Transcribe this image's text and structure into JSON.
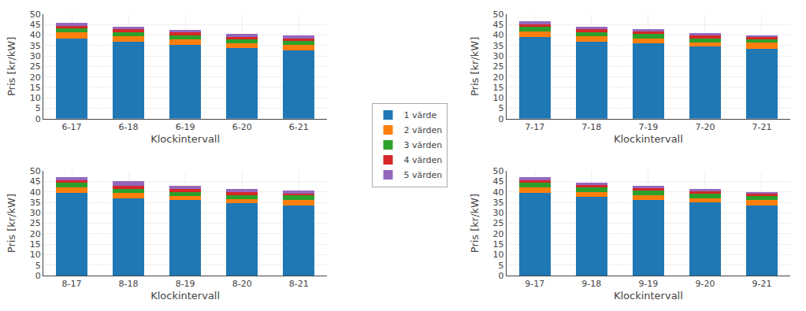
{
  "chart_data": [
    {
      "type": "bar",
      "stacked": true,
      "grid": true,
      "xlabel": "Klockintervall",
      "ylabel": "Pris [kr/kW]",
      "categories": [
        "6-17",
        "6-18",
        "6-19",
        "6-20",
        "6-21"
      ],
      "series": [
        {
          "name": "1 värde",
          "values": [
            38.5,
            37.0,
            35.5,
            34.0,
            32.5
          ]
        },
        {
          "name": "2 värden",
          "values": [
            2.8,
            2.5,
            2.5,
            2.0,
            2.8
          ]
        },
        {
          "name": "3 värden",
          "values": [
            2.0,
            2.0,
            2.0,
            2.0,
            2.0
          ]
        },
        {
          "name": "4 värden",
          "values": [
            1.2,
            1.2,
            1.2,
            1.2,
            1.2
          ]
        },
        {
          "name": "5 värden",
          "values": [
            1.5,
            1.3,
            1.3,
            1.3,
            1.5
          ]
        }
      ],
      "ylim": [
        0,
        50
      ],
      "yticks": [
        0,
        5,
        10,
        15,
        20,
        25,
        30,
        35,
        40,
        45,
        50
      ]
    },
    {
      "type": "bar",
      "stacked": true,
      "grid": true,
      "xlabel": "Klockintervall",
      "ylabel": "Pris [kr/kW]",
      "categories": [
        "7-17",
        "7-18",
        "7-19",
        "7-20",
        "7-21"
      ],
      "series": [
        {
          "name": "1 värde",
          "values": [
            39.0,
            37.0,
            36.0,
            34.5,
            33.5
          ]
        },
        {
          "name": "2 värden",
          "values": [
            2.8,
            2.5,
            2.5,
            2.0,
            2.8
          ]
        },
        {
          "name": "3 värden",
          "values": [
            2.0,
            2.0,
            2.0,
            2.0,
            2.0
          ]
        },
        {
          "name": "4 värden",
          "values": [
            1.2,
            1.2,
            1.2,
            1.2,
            0.7
          ]
        },
        {
          "name": "5 värden",
          "values": [
            1.5,
            1.3,
            1.3,
            1.3,
            1.0
          ]
        }
      ],
      "ylim": [
        0,
        50
      ],
      "yticks": [
        0,
        5,
        10,
        15,
        20,
        25,
        30,
        35,
        40,
        45,
        50
      ]
    },
    {
      "type": "bar",
      "stacked": true,
      "grid": true,
      "xlabel": "Klockintervall",
      "ylabel": "Pris [kr/kW]",
      "categories": [
        "8-17",
        "8-18",
        "8-19",
        "8-20",
        "8-21"
      ],
      "series": [
        {
          "name": "1 värde",
          "values": [
            39.5,
            37.0,
            36.0,
            34.5,
            33.5
          ]
        },
        {
          "name": "2 värden",
          "values": [
            2.8,
            2.5,
            2.0,
            2.0,
            2.8
          ]
        },
        {
          "name": "3 värden",
          "values": [
            2.0,
            2.0,
            2.0,
            2.0,
            2.0
          ]
        },
        {
          "name": "4 värden",
          "values": [
            1.2,
            1.5,
            1.5,
            1.5,
            1.0
          ]
        },
        {
          "name": "5 värden",
          "values": [
            1.5,
            2.0,
            1.5,
            1.5,
            1.2
          ]
        }
      ],
      "ylim": [
        0,
        50
      ],
      "yticks": [
        0,
        5,
        10,
        15,
        20,
        25,
        30,
        35,
        40,
        45,
        50
      ]
    },
    {
      "type": "bar",
      "stacked": true,
      "grid": true,
      "xlabel": "Klockintervall",
      "ylabel": "Pris [kr/kW]",
      "categories": [
        "9-17",
        "9-18",
        "9-19",
        "9-20",
        "9-21"
      ],
      "series": [
        {
          "name": "1 värde",
          "values": [
            39.5,
            37.5,
            36.0,
            35.0,
            33.5
          ]
        },
        {
          "name": "2 värden",
          "values": [
            2.8,
            2.5,
            2.5,
            2.0,
            2.8
          ]
        },
        {
          "name": "3 värden",
          "values": [
            2.0,
            2.0,
            2.0,
            2.0,
            2.0
          ]
        },
        {
          "name": "4 värden",
          "values": [
            1.2,
            1.2,
            1.2,
            1.2,
            0.7
          ]
        },
        {
          "name": "5 värden",
          "values": [
            1.5,
            1.3,
            1.3,
            1.3,
            1.0
          ]
        }
      ],
      "ylim": [
        0,
        50
      ],
      "yticks": [
        0,
        5,
        10,
        15,
        20,
        25,
        30,
        35,
        40,
        45,
        50
      ]
    }
  ]
}
